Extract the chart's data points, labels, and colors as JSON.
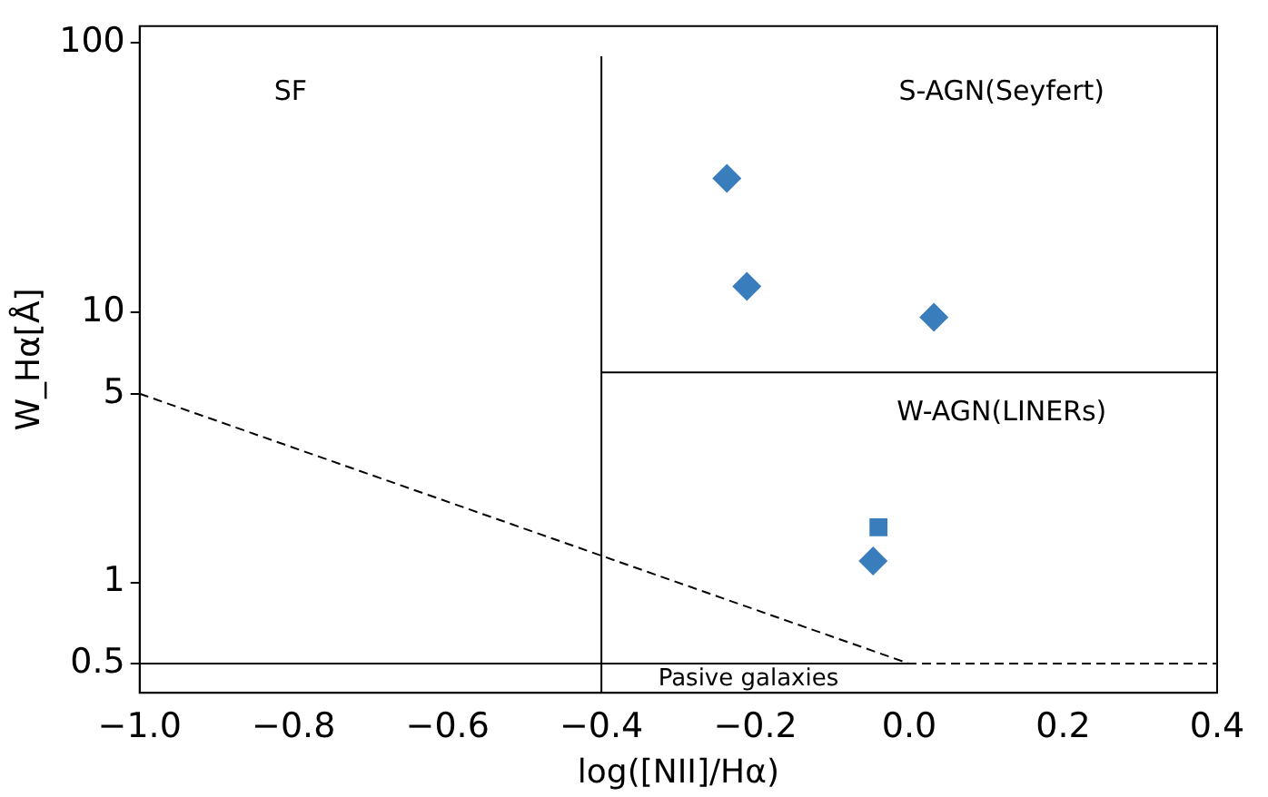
{
  "chart_data": {
    "type": "scatter",
    "xlabel": "log([NII]/Hα)",
    "ylabel": "W_Hα[Å]",
    "log": "y",
    "xlim": [
      -1.0,
      0.4
    ],
    "xticks": [
      {
        "value": -1.0,
        "label": "−1.0"
      },
      {
        "value": -0.8,
        "label": "−0.8"
      },
      {
        "value": -0.6,
        "label": "−0.6"
      },
      {
        "value": -0.4,
        "label": "−0.4"
      },
      {
        "value": -0.2,
        "label": "−0.2"
      },
      {
        "value": 0,
        "label": "0.0"
      },
      {
        "value": 0.2,
        "label": "0.2"
      },
      {
        "value": 0.4,
        "label": "0.4"
      }
    ],
    "ylim": [
      0.39,
      115
    ],
    "yticks": [
      0.5,
      1,
      5,
      10,
      100
    ],
    "grid": false,
    "legend": false,
    "series": [
      {
        "marker": "diamond",
        "color": "#3a7dbd",
        "x": [
          -0.237,
          -0.211,
          0.032,
          -0.047
        ],
        "values": [
          31.4,
          12.5,
          9.6,
          1.2
        ]
      },
      {
        "marker": "square",
        "color": "#3a7dbd",
        "x": [
          -0.04
        ],
        "values": [
          1.6
        ]
      },
      {
        "type": "line",
        "line_style": "solid",
        "color": "#000000",
        "x": [
          -0.4,
          -0.4
        ],
        "values": [
          0.39,
          89
        ]
      },
      {
        "type": "line",
        "line_style": "solid",
        "color": "#000000",
        "x": [
          -0.4,
          0.4
        ],
        "values": [
          6.0,
          6.0
        ]
      },
      {
        "type": "line",
        "line_style": "solid",
        "color": "#000000",
        "x": [
          -1.0,
          0.0
        ],
        "values": [
          0.5,
          0.5
        ]
      },
      {
        "type": "line",
        "line_style": "dashed",
        "color": "#000000",
        "x": [
          -1.0,
          0.0,
          0.4
        ],
        "values": [
          5,
          0.5,
          0.5
        ]
      }
    ],
    "annotations": [
      "SF",
      "S-AGN(Seyfert)",
      "W-AGN(LINERs)",
      "Pasive galaxies"
    ]
  }
}
